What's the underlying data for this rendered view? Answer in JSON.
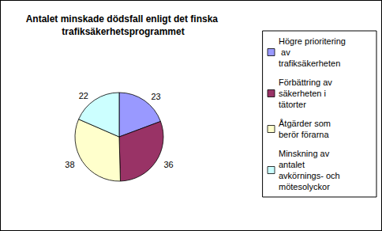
{
  "chart_data": {
    "type": "pie",
    "title": "Antalet minskade dödsfall enligt det finska trafiksäkerhetsprogrammet",
    "categories": [
      "Högre prioritering av trafiksäkerheten",
      "Förbättring av säkerheten i tätorter",
      "Åtgärder som berör förarna",
      "Minskning av antalet avkörnings- och mötesolyckor"
    ],
    "values": [
      23,
      36,
      38,
      22
    ],
    "colors": [
      "#9999ff",
      "#993366",
      "#ffffcc",
      "#ccffff"
    ],
    "data_labels": true,
    "legend": "right"
  }
}
